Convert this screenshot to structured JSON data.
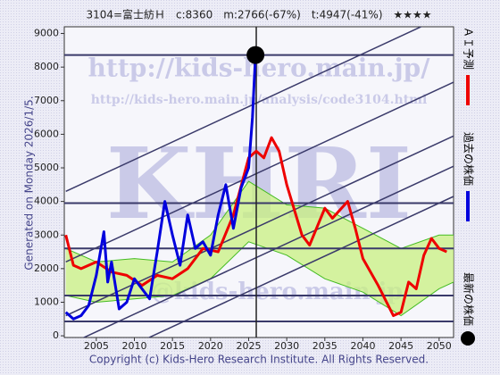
{
  "chart_data": {
    "type": "line",
    "title": "3104=富士紡Ｈ　c:8360　m:2766(-67%)　t:4947(-41%)　★★★★",
    "side_label": "Generated on Monday 2026/1/5.",
    "footer": "Copyright (c) Kids-Hero Research Institute. All Rights Reserved.",
    "watermarks": [
      "http://kids-hero.main.jp/",
      "http://kids-hero.main.jp/analysis/code3104.html",
      "KHRI",
      "@kids-hero.main.jp"
    ],
    "xlim": [
      2000.8,
      2051.9
    ],
    "ylim": [
      -50,
      9200
    ],
    "xticks": [
      2005,
      2010,
      2015,
      2020,
      2025,
      2030,
      2035,
      2040,
      2045,
      2050
    ],
    "yticks": [
      0,
      1000,
      2000,
      3000,
      4000,
      5000,
      6000,
      7000,
      8000,
      9000
    ],
    "grid": false,
    "series": [
      {
        "name": "ＡＩ予測",
        "color": "#ee0000",
        "x": [
          2001,
          2002,
          2003,
          2005,
          2007,
          2009,
          2011,
          2013,
          2015,
          2017,
          2019,
          2021,
          2023,
          2025,
          2026,
          2027,
          2028,
          2029,
          2030,
          2032,
          2033,
          2035,
          2036,
          2038,
          2039,
          2040,
          2042,
          2044,
          2045,
          2046,
          2047,
          2048,
          2049,
          2050,
          2051
        ],
        "values": [
          3000,
          2100,
          2000,
          2200,
          1900,
          1800,
          1500,
          1800,
          1700,
          2000,
          2600,
          2500,
          3600,
          5300,
          5500,
          5300,
          5900,
          5500,
          4500,
          3000,
          2700,
          3800,
          3500,
          4000,
          3200,
          2300,
          1500,
          600,
          700,
          1600,
          1400,
          2400,
          2900,
          2600,
          2500
        ]
      },
      {
        "name": "過去の株価",
        "color": "#0000dd",
        "x": [
          2001,
          2002,
          2003,
          2004,
          2005,
          2006,
          2006.5,
          2007,
          2008,
          2009,
          2010,
          2011,
          2012,
          2013,
          2014,
          2015,
          2016,
          2017,
          2018,
          2019,
          2020,
          2021,
          2022,
          2023,
          2024,
          2025,
          2025.5,
          2025.9
        ],
        "values": [
          700,
          500,
          600,
          900,
          1800,
          3100,
          1600,
          2200,
          800,
          1000,
          1700,
          1400,
          1100,
          2500,
          4000,
          3000,
          2100,
          3600,
          2600,
          2800,
          2400,
          3600,
          4500,
          3200,
          4400,
          5000,
          6500,
          8360
        ]
      }
    ],
    "latest": {
      "name": "最新の株価",
      "color": "#000000",
      "x": 2025.9,
      "value": 8360
    },
    "band": {
      "color": "#c8f080",
      "line_color": "#44bb22",
      "x": [
        2001,
        2005,
        2010,
        2015,
        2020,
        2025,
        2030,
        2035,
        2040,
        2045,
        2050,
        2051.9
      ],
      "lower": [
        1200,
        1000,
        1100,
        1200,
        1700,
        2800,
        2400,
        1700,
        1300,
        600,
        1400,
        1600
      ],
      "upper": [
        2600,
        2200,
        2300,
        2200,
        3000,
        4600,
        3900,
        3800,
        3200,
        2600,
        3000,
        3000
      ]
    },
    "hlines": [
      8360,
      3950,
      2600,
      1200,
      430
    ],
    "trend_lines": [
      {
        "x": [
          2001,
          2051.9
        ],
        "y": [
          4300,
          9650
        ]
      },
      {
        "x": [
          2001,
          2051.9
        ],
        "y": [
          2200,
          7550
        ]
      },
      {
        "x": [
          2001,
          2051.9
        ],
        "y": [
          600,
          5950
        ]
      },
      {
        "x": [
          2001,
          2051.9
        ],
        "y": [
          -300,
          5050
        ]
      },
      {
        "x": [
          2001,
          2051.9
        ],
        "y": [
          -1200,
          4150
        ]
      }
    ],
    "vline": 2026
  }
}
